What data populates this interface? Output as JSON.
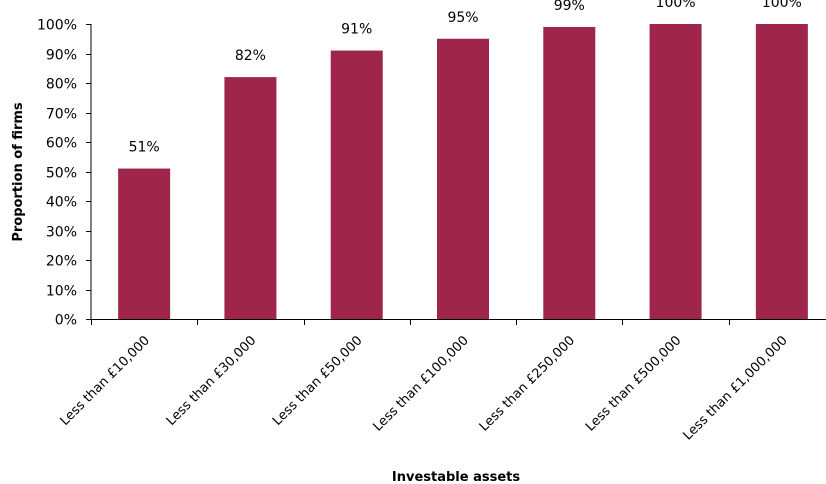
{
  "chart_data": {
    "type": "bar",
    "categories": [
      "Less than £10,000",
      "Less than £30,000",
      "Less than £50,000",
      "Less than £100,000",
      "Less than £250,000",
      "Less than £500,000",
      "Less than £1,000,000"
    ],
    "values": [
      51,
      82,
      91,
      95,
      99,
      100,
      100
    ],
    "data_labels": [
      "51%",
      "82%",
      "91%",
      "95%",
      "99%",
      "100%",
      "100%"
    ],
    "title": "",
    "xlabel": "Investable assets",
    "ylabel": "Proportion of firms",
    "ylim": [
      0,
      100
    ],
    "yticks": [
      0,
      10,
      20,
      30,
      40,
      50,
      60,
      70,
      80,
      90,
      100
    ],
    "ytick_labels": [
      "0%",
      "10%",
      "20%",
      "30%",
      "40%",
      "50%",
      "60%",
      "70%",
      "80%",
      "90%",
      "100%"
    ],
    "grid": false,
    "legend": "none",
    "bar_color": "#A0254A"
  }
}
